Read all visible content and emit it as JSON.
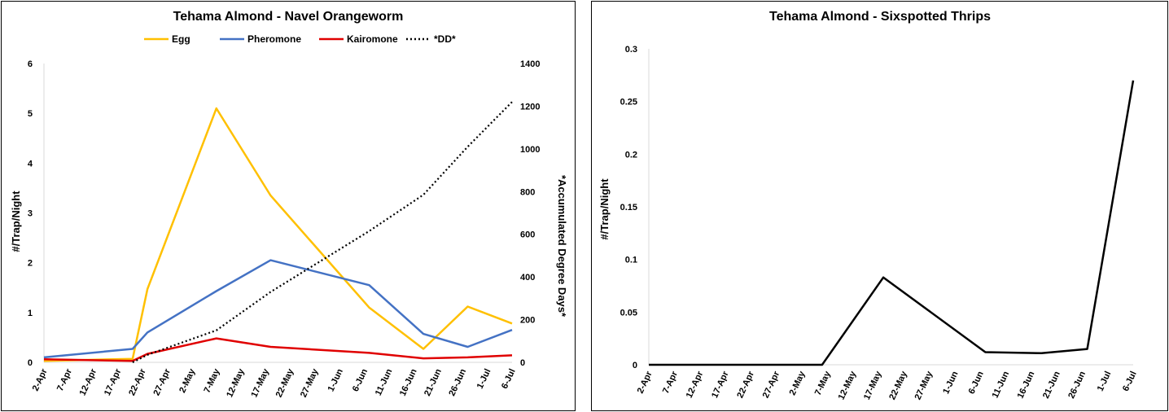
{
  "chart_data": [
    {
      "type": "line",
      "title": "Tehama Almond - Navel Orangeworm",
      "ylabel": "#/Trap/Night",
      "y2label": "*Accumulated Degree Days*",
      "ylim": [
        0,
        6
      ],
      "y2lim": [
        0,
        1400
      ],
      "yticks": [
        "0",
        "1",
        "2",
        "3",
        "4",
        "5",
        "6"
      ],
      "y2ticks": [
        "0",
        "200",
        "400",
        "600",
        "800",
        "1000",
        "1200",
        "1400"
      ],
      "x_unit": "days since 2-Apr",
      "xticks": [
        "2-Apr",
        "7-Apr",
        "12-Apr",
        "17-Apr",
        "22-Apr",
        "27-Apr",
        "2-May",
        "7-May",
        "12-May",
        "17-May",
        "22-May",
        "27-May",
        "1-Jun",
        "6-Jun",
        "11-Jun",
        "16-Jun",
        "21-Jun",
        "26-Jun",
        "1-Jul",
        "6-Jul"
      ],
      "legend_position": "top",
      "series": [
        {
          "name": "Egg",
          "color": "#FFC000",
          "axis": "left",
          "dash": false,
          "x": [
            0,
            18,
            21,
            35,
            46,
            66,
            77,
            86,
            95
          ],
          "y": [
            0.03,
            0.07,
            1.47,
            5.1,
            3.35,
            1.1,
            0.27,
            1.12,
            0.78
          ]
        },
        {
          "name": "Pheromone",
          "color": "#4472C4",
          "axis": "left",
          "dash": false,
          "x": [
            0,
            18,
            21,
            35,
            46,
            66,
            77,
            86,
            95
          ],
          "y": [
            0.1,
            0.27,
            0.6,
            1.43,
            2.05,
            1.55,
            0.57,
            0.31,
            0.65
          ]
        },
        {
          "name": "Kairomone",
          "color": "#E00000",
          "axis": "left",
          "dash": false,
          "x": [
            0,
            18,
            21,
            35,
            46,
            66,
            77,
            86,
            95
          ],
          "y": [
            0.06,
            0.03,
            0.17,
            0.48,
            0.31,
            0.19,
            0.08,
            0.1,
            0.14
          ]
        },
        {
          "name": "*DD*",
          "color": "#000000",
          "axis": "right",
          "dash": true,
          "x": [
            18,
            21,
            35,
            46,
            66,
            77,
            86,
            95
          ],
          "y": [
            0,
            35,
            150,
            330,
            615,
            785,
            1010,
            1220
          ]
        }
      ]
    },
    {
      "type": "line",
      "title": "Tehama Almond - Sixspotted Thrips",
      "ylabel": "#/Trap/Night",
      "ylim": [
        0,
        0.3
      ],
      "yticks": [
        "0",
        "0.05",
        "0.1",
        "0.15",
        "0.2",
        "0.25",
        "0.3"
      ],
      "x_unit": "days since 2-Apr",
      "xticks": [
        "2-Apr",
        "7-Apr",
        "12-Apr",
        "17-Apr",
        "22-Apr",
        "27-Apr",
        "2-May",
        "7-May",
        "12-May",
        "17-May",
        "22-May",
        "27-May",
        "1-Jun",
        "6-Jun",
        "11-Jun",
        "16-Jun",
        "21-Jun",
        "26-Jun",
        "1-Jul",
        "6-Jul"
      ],
      "series": [
        {
          "name": "Sixspotted Thrips",
          "color": "#000000",
          "axis": "left",
          "dash": false,
          "x": [
            0,
            34,
            46,
            66,
            77,
            86,
            95
          ],
          "y": [
            0,
            0,
            0.083,
            0.012,
            0.011,
            0.015,
            0.27
          ]
        }
      ]
    }
  ]
}
